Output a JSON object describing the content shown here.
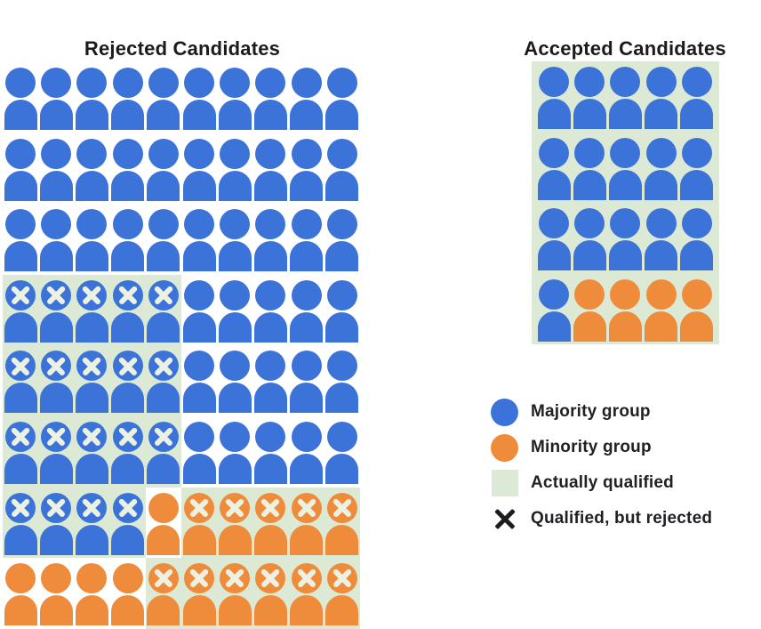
{
  "colors": {
    "majority_blue": "#3B73D9",
    "minority_orange": "#EF8C3C",
    "qualified_green": "#DCE9D5",
    "x_on_icon": "#ECF1E2",
    "x_legend": "#1C1C1C",
    "title_text": "#1B1B1B"
  },
  "cell_code_key": {
    "B": "majority, not qualified",
    "Q": "majority, actually qualified",
    "O": "minority, not qualified",
    "q": "minority, actually qualified"
  },
  "rejected_grid": {
    "title": "Rejected Candidates",
    "columns": 10,
    "show_x_on_qualified": true,
    "rows": [
      "BBBBBBBBBB",
      "BBBBBBBBBB",
      "BBBBBBBBBB",
      "QQQQQBBBBB",
      "QQQQQBBBBB",
      "QQQQQBBBBB",
      "QQQQOqqqqq",
      "OOOOqqqqqq"
    ]
  },
  "accepted_grid": {
    "title": "Accepted Candidates",
    "columns": 5,
    "show_x_on_qualified": false,
    "rows": [
      "QQQQQ",
      "QQQQQ",
      "QQQQQ",
      "Qqqqq"
    ]
  },
  "counts": {
    "rejected": {
      "majority": 64,
      "minority": 16,
      "qualified_but_rejected_majority": 19,
      "qualified_but_rejected_minority": 11
    },
    "accepted": {
      "majority": 16,
      "minority": 4,
      "all_actually_qualified": true
    }
  },
  "legend": {
    "items": [
      {
        "swatch": "blue-circle",
        "label": "Majority group"
      },
      {
        "swatch": "orange-circle",
        "label": "Minority group"
      },
      {
        "swatch": "green-square",
        "label": "Actually qualified"
      },
      {
        "swatch": "black-x",
        "label": "Qualified, but rejected"
      }
    ]
  }
}
